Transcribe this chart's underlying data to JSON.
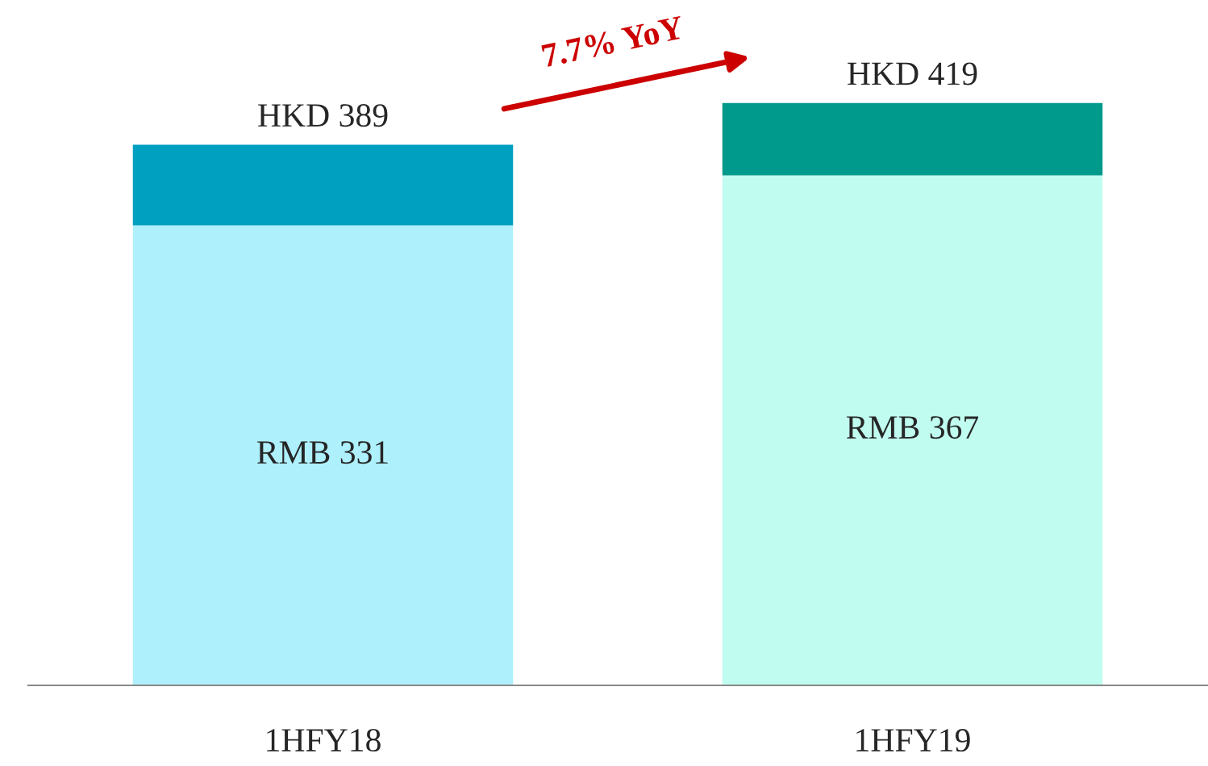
{
  "chart_data": {
    "type": "bar",
    "categories": [
      "1HFY18",
      "1HFY19"
    ],
    "stacked": true,
    "series": [
      {
        "colors": [
          "#aef0fc",
          "#c0fcf0"
        ],
        "values": [
          331,
          367
        ],
        "value_labels": [
          "RMB 331",
          "RMB 367"
        ]
      },
      {
        "colors": [
          "#00a0c0",
          "#009a8c"
        ],
        "values": [
          58,
          52
        ]
      }
    ],
    "totals": [
      "HKD 389",
      "HKD 419"
    ],
    "annotations": [
      "7.7% YoY"
    ]
  }
}
